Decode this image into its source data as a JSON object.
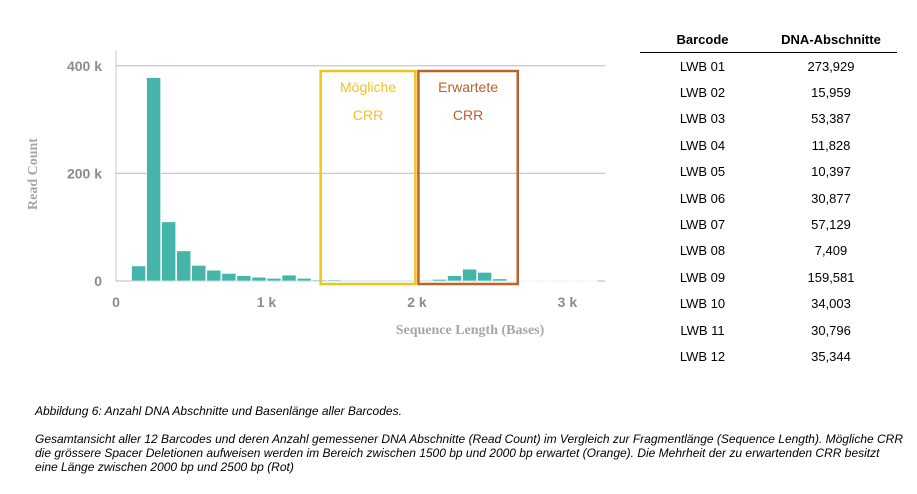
{
  "chart_data": {
    "type": "bar",
    "xlabel": "Sequence Length (Bases)",
    "ylabel": "Read Count",
    "xlim": [
      0,
      3250
    ],
    "ylim": [
      0,
      420000
    ],
    "x_ticks": [
      {
        "value": 0,
        "label": "0"
      },
      {
        "value": 1000,
        "label": "1 k"
      },
      {
        "value": 2000,
        "label": "2 k"
      },
      {
        "value": 3000,
        "label": "3 k"
      }
    ],
    "y_ticks": [
      {
        "value": 0,
        "label": "0"
      },
      {
        "value": 200000,
        "label": "200 k"
      },
      {
        "value": 400000,
        "label": "400 k"
      }
    ],
    "grid": true,
    "bar_color": "#45b5aa",
    "bin_width": 100,
    "bins": [
      {
        "x": 100,
        "value": 28000
      },
      {
        "x": 200,
        "value": 378000
      },
      {
        "x": 300,
        "value": 110000
      },
      {
        "x": 400,
        "value": 56000
      },
      {
        "x": 500,
        "value": 29000
      },
      {
        "x": 600,
        "value": 20000
      },
      {
        "x": 700,
        "value": 14000
      },
      {
        "x": 800,
        "value": 10000
      },
      {
        "x": 900,
        "value": 7000
      },
      {
        "x": 1000,
        "value": 5000
      },
      {
        "x": 1100,
        "value": 11000
      },
      {
        "x": 1200,
        "value": 5000
      },
      {
        "x": 1300,
        "value": 2000
      },
      {
        "x": 1400,
        "value": 2000
      },
      {
        "x": 1500,
        "value": 1500
      },
      {
        "x": 1600,
        "value": 1500
      },
      {
        "x": 1700,
        "value": 1500
      },
      {
        "x": 1800,
        "value": 1500
      },
      {
        "x": 1900,
        "value": 1500
      },
      {
        "x": 2000,
        "value": 1500
      },
      {
        "x": 2100,
        "value": 3000
      },
      {
        "x": 2200,
        "value": 10000
      },
      {
        "x": 2300,
        "value": 22000
      },
      {
        "x": 2400,
        "value": 16000
      },
      {
        "x": 2500,
        "value": 4000
      },
      {
        "x": 2600,
        "value": 1000
      },
      {
        "x": 2700,
        "value": 500
      },
      {
        "x": 2800,
        "value": 500
      },
      {
        "x": 2900,
        "value": 500
      },
      {
        "x": 3000,
        "value": 500
      },
      {
        "x": 3100,
        "value": 500
      }
    ],
    "annotations": [
      {
        "lines": [
          "Mögliche",
          "CRR"
        ],
        "x_from": 1350,
        "x_to": 2000,
        "color": "#f5c11f"
      },
      {
        "lines": [
          "Erwartete",
          "CRR"
        ],
        "x_from": 2000,
        "x_to": 2680,
        "color": "#c0602a"
      }
    ]
  },
  "table": {
    "headers": [
      "Barcode",
      "DNA-Abschnitte"
    ],
    "rows": [
      [
        "LWB 01",
        "273,929"
      ],
      [
        "LWB 02",
        "15,959"
      ],
      [
        "LWB 03",
        "53,387"
      ],
      [
        "LWB 04",
        "11,828"
      ],
      [
        "LWB 05",
        "10,397"
      ],
      [
        "LWB 06",
        "30,877"
      ],
      [
        "LWB 07",
        "57,129"
      ],
      [
        "LWB 08",
        "7,409"
      ],
      [
        "LWB 09",
        "159,581"
      ],
      [
        "LWB 10",
        "34,003"
      ],
      [
        "LWB 11",
        "30,796"
      ],
      [
        "LWB 12",
        "35,344"
      ]
    ]
  },
  "caption": {
    "title": "Abbildung 6: Anzahl DNA Abschnitte und Basenlänge aller Barcodes.",
    "body": "Gesamtansicht aller 12 Barcodes und deren Anzahl gemessener DNA Abschnitte (Read Count) im Vergleich zur Fragmentlänge (Sequence Length). Mögliche CRR die grössere Spacer Deletionen aufweisen werden im Bereich zwischen 1500 bp und 2000 bp erwartet (Orange). Die Mehrheit der zu erwartenden CRR besitzt eine Länge zwischen 2000 bp und 2500 bp (Rot)"
  }
}
